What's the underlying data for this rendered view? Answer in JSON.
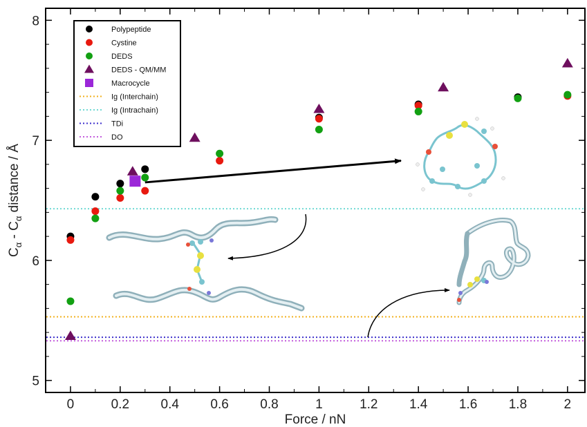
{
  "chart_data": {
    "type": "scatter",
    "title": "",
    "xlabel": "Force / nN",
    "ylabel_parts": {
      "prefix": "C",
      "sub1": "α",
      "mid": " - C",
      "sub2": "α",
      "suffix": " distance / Å"
    },
    "xlim": [
      -0.1,
      2.07
    ],
    "ylim": [
      4.9,
      8.1
    ],
    "x_ticks": [
      0,
      0.2,
      0.4,
      0.6,
      0.8,
      1,
      1.2,
      1.4,
      1.6,
      1.8,
      2
    ],
    "x_tick_labels": [
      "0",
      "0.2",
      "0.4",
      "0.6",
      "0.8",
      "1",
      "1.2",
      "1.4",
      "1.6",
      "1.8",
      "2"
    ],
    "y_ticks": [
      5,
      6,
      7,
      8
    ],
    "y_tick_labels": [
      "5",
      "6",
      "7",
      "8"
    ],
    "grid": false,
    "legend_position": "top-left",
    "series": [
      {
        "name": "Polypeptide",
        "marker": "circle",
        "color": "#000000",
        "x": [
          0,
          0.1,
          0.2,
          0.3,
          1,
          1.4,
          1.8
        ],
        "y": [
          6.2,
          6.53,
          6.64,
          6.76,
          7.19,
          7.3,
          7.36
        ]
      },
      {
        "name": "Cystine",
        "marker": "circle",
        "color": "#e8190f",
        "x": [
          0,
          0.1,
          0.2,
          0.3,
          0.6,
          1,
          1.4,
          2
        ],
        "y": [
          6.17,
          6.41,
          6.52,
          6.58,
          6.83,
          7.18,
          7.29,
          7.37
        ]
      },
      {
        "name": "DEDS",
        "marker": "circle",
        "color": "#12a012",
        "x": [
          0,
          0.1,
          0.2,
          0.3,
          0.6,
          1,
          1.4,
          1.8,
          2
        ],
        "y": [
          5.66,
          6.35,
          6.58,
          6.69,
          6.89,
          7.09,
          7.24,
          7.35,
          7.38
        ]
      },
      {
        "name": "DEDS - QM/MM",
        "marker": "triangle",
        "color": "#6e0f5e",
        "x": [
          0,
          0.25,
          0.5,
          1,
          1.5,
          2
        ],
        "y": [
          5.37,
          6.74,
          7.02,
          7.26,
          7.44,
          7.64
        ]
      },
      {
        "name": "Macrocycle",
        "marker": "square",
        "color": "#9b27d8",
        "x": [
          0.26
        ],
        "y": [
          6.66
        ]
      }
    ],
    "reference_lines": [
      {
        "name": "Ig (Interchain)",
        "y": 5.53,
        "color": "#f2b01e"
      },
      {
        "name": "Ig (Intrachain)",
        "y": 6.43,
        "color": "#6fd9d3"
      },
      {
        "name": "TDi",
        "y": 5.36,
        "color": "#3d2ecc"
      },
      {
        "name": "DO",
        "y": 5.33,
        "color": "#c35cdc"
      }
    ],
    "annotations": {
      "arrow_from": {
        "x": 0.3,
        "y": 6.65
      },
      "arrow_to": {
        "x": 1.33,
        "y": 6.83
      }
    }
  }
}
